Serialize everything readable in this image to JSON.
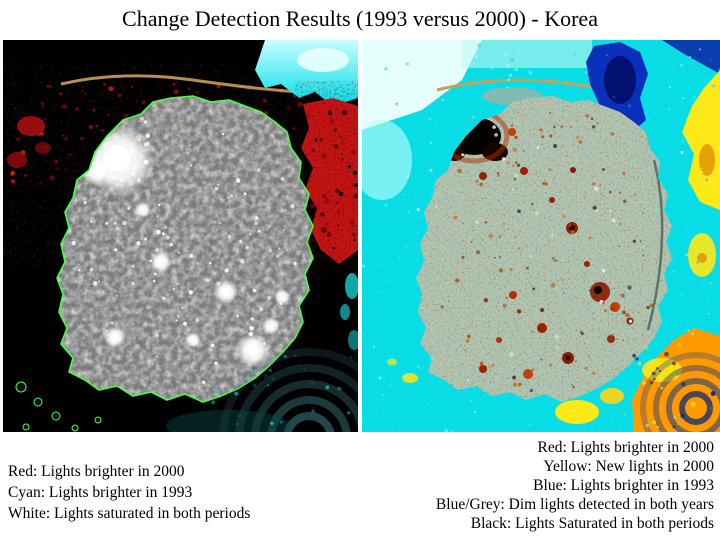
{
  "slide": {
    "title": "Change Detection Results (1993 versus 2000) - Korea"
  },
  "panels": {
    "left": {
      "legend": [
        "Red: Lights brighter in 2000",
        "Cyan: Lights brighter in 1993",
        "White: Lights saturated in both periods"
      ]
    },
    "right": {
      "legend": [
        "Red: Lights brighter in 2000",
        "Yellow: New lights in 2000",
        "Blue: Lights brighter in 1993",
        "Blue/Grey: Dim lights detected in both years",
        "Black: Lights Saturated in both periods"
      ]
    }
  },
  "colors": {
    "red": "#c51414",
    "cyan": "#08dde6",
    "white": "#ffffff",
    "yellow": "#ffe818",
    "blue": "#0a2fbb",
    "blue_grey": "#3f7f86",
    "black": "#000000",
    "land_grey": "#7e7e7e",
    "outline_green": "#46ff46"
  }
}
